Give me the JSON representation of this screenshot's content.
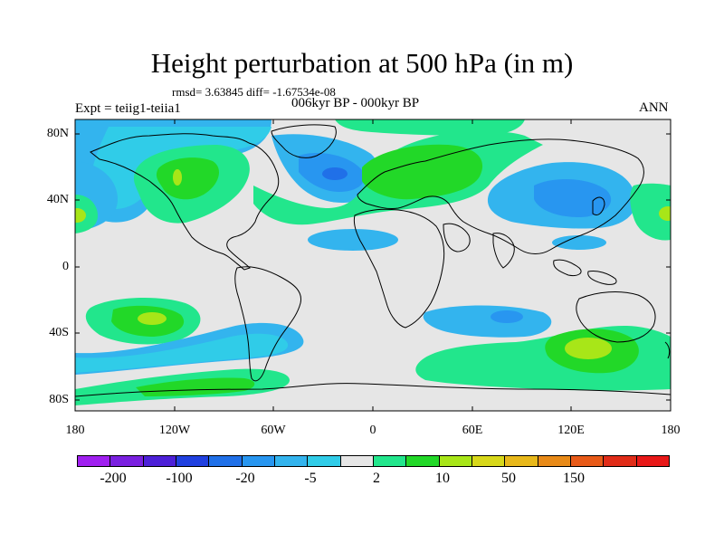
{
  "title": "Height perturbation at 500 hPa (in m)",
  "stats": "rmsd= 3.63845 diff= -1.67534e-08",
  "period": "006kyr BP - 000kyr BP",
  "expt": "Expt = teiig1-teiia1",
  "season": "ANN",
  "lat_labels": [
    "80N",
    "40N",
    "0",
    "40S",
    "80S"
  ],
  "lon_labels": [
    "180",
    "120W",
    "60W",
    "0",
    "60E",
    "120E",
    "180"
  ],
  "colorbar": {
    "colors": [
      "#a020f0",
      "#7a20e0",
      "#4d20d8",
      "#2040e0",
      "#2070e8",
      "#2896f0",
      "#33b4ee",
      "#30cce8",
      "#e6e6e6",
      "#22e68c",
      "#22d828",
      "#a8e618",
      "#d8d81a",
      "#e8b81a",
      "#e88a18",
      "#e85a18",
      "#e02c18",
      "#e81818"
    ],
    "labels": [
      "-200",
      "-100",
      "-20",
      "-5",
      "2",
      "10",
      "50",
      "150"
    ]
  }
}
